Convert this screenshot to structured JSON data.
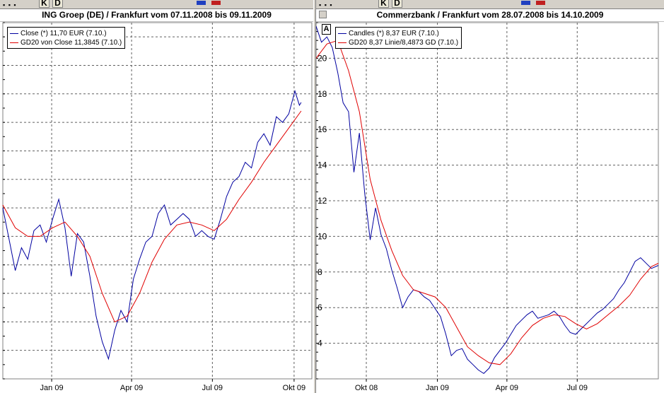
{
  "toolbar": {
    "k_label": "K",
    "d_label": "D"
  },
  "left_chart": {
    "title": "ING Groep (DE) / Frankfurt vom 07.11.2008 bis 09.11.2009",
    "legend": [
      {
        "label": "Close (*) 11,70 EUR (7.10.)",
        "color": "#0000a0"
      },
      {
        "label": "GD20 von Close 11,3845 (7.10.)",
        "color": "#e00000"
      }
    ]
  },
  "right_chart": {
    "title": "Commerzbank / Frankfurt vom 28.07.2008 bis 14.10.2009",
    "axis_marker": "A",
    "legend": [
      {
        "label": "Candles (*) 8,37 EUR (7.10.)",
        "color": "#0000a0"
      },
      {
        "label": "GD20 8,37 Linie/8,4873 GD (7.10.)",
        "color": "#e00000"
      }
    ]
  },
  "chart_data": [
    {
      "type": "line",
      "title": "ING Groep (DE) / Frankfurt vom 07.11.2008 bis 09.11.2009",
      "x_tick_labels": [
        "Jan 09",
        "Apr 09",
        "Jul 09",
        "Okt 09"
      ],
      "x_ticks": [
        "2009-01-01",
        "2009-04-01",
        "2009-07-01",
        "2009-10-01"
      ],
      "xlim": [
        "2008-11-07",
        "2009-10-21"
      ],
      "y_axis_labels_visible": false,
      "grid": true,
      "legend_position": "top-left",
      "series": [
        {
          "name": "Close (*) 11,70 EUR (7.10.)",
          "color": "#0000a0",
          "points": [
            [
              "2008-11-07",
              8.0
            ],
            [
              "2008-11-14",
              6.9
            ],
            [
              "2008-11-21",
              5.8
            ],
            [
              "2008-11-28",
              6.6
            ],
            [
              "2008-12-05",
              6.2
            ],
            [
              "2008-12-12",
              7.2
            ],
            [
              "2008-12-19",
              7.4
            ],
            [
              "2008-12-26",
              6.8
            ],
            [
              "2009-01-02",
              7.6
            ],
            [
              "2009-01-09",
              8.3
            ],
            [
              "2009-01-16",
              7.3
            ],
            [
              "2009-01-23",
              5.6
            ],
            [
              "2009-01-30",
              7.1
            ],
            [
              "2009-02-06",
              6.8
            ],
            [
              "2009-02-13",
              5.6
            ],
            [
              "2009-02-20",
              4.2
            ],
            [
              "2009-02-27",
              3.3
            ],
            [
              "2009-03-06",
              2.7
            ],
            [
              "2009-03-13",
              3.7
            ],
            [
              "2009-03-20",
              4.4
            ],
            [
              "2009-03-27",
              4.0
            ],
            [
              "2009-04-03",
              5.5
            ],
            [
              "2009-04-10",
              6.2
            ],
            [
              "2009-04-17",
              6.8
            ],
            [
              "2009-04-24",
              7.0
            ],
            [
              "2009-05-01",
              7.8
            ],
            [
              "2009-05-08",
              8.1
            ],
            [
              "2009-05-15",
              7.4
            ],
            [
              "2009-05-22",
              7.6
            ],
            [
              "2009-05-29",
              7.8
            ],
            [
              "2009-06-05",
              7.6
            ],
            [
              "2009-06-12",
              7.0
            ],
            [
              "2009-06-19",
              7.2
            ],
            [
              "2009-06-26",
              7.0
            ],
            [
              "2009-07-03",
              6.9
            ],
            [
              "2009-07-10",
              7.6
            ],
            [
              "2009-07-17",
              8.4
            ],
            [
              "2009-07-24",
              8.9
            ],
            [
              "2009-07-31",
              9.1
            ],
            [
              "2009-08-07",
              9.6
            ],
            [
              "2009-08-14",
              9.4
            ],
            [
              "2009-08-21",
              10.3
            ],
            [
              "2009-08-28",
              10.6
            ],
            [
              "2009-09-04",
              10.2
            ],
            [
              "2009-09-11",
              11.2
            ],
            [
              "2009-09-18",
              11.0
            ],
            [
              "2009-09-25",
              11.3
            ],
            [
              "2009-10-02",
              12.1
            ],
            [
              "2009-10-07",
              11.6
            ],
            [
              "2009-10-09",
              11.7
            ]
          ]
        },
        {
          "name": "GD20 von Close 11,3845 (7.10.)",
          "color": "#e00000",
          "points": [
            [
              "2008-11-07",
              8.1
            ],
            [
              "2008-11-21",
              7.3
            ],
            [
              "2008-12-05",
              7.0
            ],
            [
              "2008-12-19",
              7.0
            ],
            [
              "2009-01-02",
              7.3
            ],
            [
              "2009-01-16",
              7.5
            ],
            [
              "2009-01-30",
              7.0
            ],
            [
              "2009-02-13",
              6.3
            ],
            [
              "2009-02-27",
              5.0
            ],
            [
              "2009-03-13",
              4.0
            ],
            [
              "2009-03-27",
              4.2
            ],
            [
              "2009-04-10",
              5.0
            ],
            [
              "2009-04-24",
              6.1
            ],
            [
              "2009-05-08",
              6.9
            ],
            [
              "2009-05-22",
              7.4
            ],
            [
              "2009-06-05",
              7.5
            ],
            [
              "2009-06-19",
              7.4
            ],
            [
              "2009-07-03",
              7.2
            ],
            [
              "2009-07-17",
              7.6
            ],
            [
              "2009-07-31",
              8.3
            ],
            [
              "2009-08-14",
              8.9
            ],
            [
              "2009-08-28",
              9.6
            ],
            [
              "2009-09-11",
              10.2
            ],
            [
              "2009-09-25",
              10.8
            ],
            [
              "2009-10-09",
              11.4
            ]
          ]
        }
      ]
    },
    {
      "type": "line",
      "title": "Commerzbank / Frankfurt vom 28.07.2008 bis 14.10.2009",
      "x_tick_labels": [
        "Okt 08",
        "Jan 09",
        "Apr 09",
        "Jul 09"
      ],
      "x_ticks": [
        "2008-10-01",
        "2009-01-01",
        "2009-04-01",
        "2009-07-01"
      ],
      "xlim": [
        "2008-07-28",
        "2009-10-14"
      ],
      "ylim": [
        2,
        22
      ],
      "y_tick_labels": [
        "4",
        "6",
        "8",
        "10",
        "12",
        "14",
        "16",
        "18",
        "20"
      ],
      "y_ticks": [
        4,
        6,
        8,
        10,
        12,
        14,
        16,
        18,
        20
      ],
      "grid": true,
      "legend_position": "top-left",
      "series": [
        {
          "name": "Candles (*) 8,37 EUR (7.10.)",
          "color": "#0000a0",
          "points": [
            [
              "2008-07-28",
              21.8
            ],
            [
              "2008-08-04",
              20.9
            ],
            [
              "2008-08-11",
              21.2
            ],
            [
              "2008-08-18",
              20.6
            ],
            [
              "2008-08-25",
              19.2
            ],
            [
              "2008-09-01",
              17.5
            ],
            [
              "2008-09-08",
              17.0
            ],
            [
              "2008-09-15",
              13.6
            ],
            [
              "2008-09-22",
              15.8
            ],
            [
              "2008-09-29",
              12.4
            ],
            [
              "2008-10-06",
              9.8
            ],
            [
              "2008-10-13",
              11.6
            ],
            [
              "2008-10-20",
              10.1
            ],
            [
              "2008-10-27",
              9.3
            ],
            [
              "2008-11-03",
              8.1
            ],
            [
              "2008-11-10",
              7.1
            ],
            [
              "2008-11-17",
              6.0
            ],
            [
              "2008-11-24",
              6.6
            ],
            [
              "2008-12-01",
              7.0
            ],
            [
              "2008-12-08",
              6.9
            ],
            [
              "2008-12-15",
              6.6
            ],
            [
              "2008-12-22",
              6.4
            ],
            [
              "2009-01-05",
              5.5
            ],
            [
              "2009-01-12",
              4.5
            ],
            [
              "2009-01-19",
              3.3
            ],
            [
              "2009-01-26",
              3.6
            ],
            [
              "2009-02-02",
              3.7
            ],
            [
              "2009-02-09",
              3.1
            ],
            [
              "2009-02-16",
              2.8
            ],
            [
              "2009-02-23",
              2.5
            ],
            [
              "2009-03-02",
              2.3
            ],
            [
              "2009-03-09",
              2.6
            ],
            [
              "2009-03-16",
              3.2
            ],
            [
              "2009-03-23",
              3.6
            ],
            [
              "2009-03-30",
              4.0
            ],
            [
              "2009-04-06",
              4.5
            ],
            [
              "2009-04-13",
              5.0
            ],
            [
              "2009-04-20",
              5.3
            ],
            [
              "2009-04-27",
              5.6
            ],
            [
              "2009-05-04",
              5.8
            ],
            [
              "2009-05-11",
              5.4
            ],
            [
              "2009-05-18",
              5.5
            ],
            [
              "2009-05-25",
              5.6
            ],
            [
              "2009-06-01",
              5.8
            ],
            [
              "2009-06-08",
              5.5
            ],
            [
              "2009-06-15",
              5.0
            ],
            [
              "2009-06-22",
              4.6
            ],
            [
              "2009-06-29",
              4.5
            ],
            [
              "2009-07-06",
              4.8
            ],
            [
              "2009-07-13",
              5.1
            ],
            [
              "2009-07-20",
              5.4
            ],
            [
              "2009-07-27",
              5.7
            ],
            [
              "2009-08-03",
              5.9
            ],
            [
              "2009-08-10",
              6.2
            ],
            [
              "2009-08-17",
              6.5
            ],
            [
              "2009-08-24",
              7.0
            ],
            [
              "2009-08-31",
              7.4
            ],
            [
              "2009-09-07",
              8.0
            ],
            [
              "2009-09-14",
              8.6
            ],
            [
              "2009-09-21",
              8.8
            ],
            [
              "2009-09-28",
              8.5
            ],
            [
              "2009-10-05",
              8.2
            ],
            [
              "2009-10-14",
              8.37
            ]
          ]
        },
        {
          "name": "GD20 8,37 Linie/8,4873 GD (7.10.)",
          "color": "#e00000",
          "points": [
            [
              "2008-07-28",
              20.0
            ],
            [
              "2008-08-11",
              20.8
            ],
            [
              "2008-08-25",
              21.0
            ],
            [
              "2008-09-08",
              19.3
            ],
            [
              "2008-09-22",
              17.0
            ],
            [
              "2008-10-06",
              13.2
            ],
            [
              "2008-10-20",
              10.9
            ],
            [
              "2008-11-03",
              9.2
            ],
            [
              "2008-11-17",
              7.8
            ],
            [
              "2008-12-01",
              7.0
            ],
            [
              "2008-12-15",
              6.8
            ],
            [
              "2008-12-29",
              6.6
            ],
            [
              "2009-01-12",
              6.0
            ],
            [
              "2009-01-26",
              4.9
            ],
            [
              "2009-02-09",
              3.8
            ],
            [
              "2009-02-23",
              3.3
            ],
            [
              "2009-03-09",
              2.9
            ],
            [
              "2009-03-23",
              2.8
            ],
            [
              "2009-04-06",
              3.4
            ],
            [
              "2009-04-20",
              4.3
            ],
            [
              "2009-05-04",
              5.0
            ],
            [
              "2009-05-18",
              5.4
            ],
            [
              "2009-06-01",
              5.6
            ],
            [
              "2009-06-15",
              5.5
            ],
            [
              "2009-06-29",
              5.1
            ],
            [
              "2009-07-13",
              4.8
            ],
            [
              "2009-07-27",
              5.1
            ],
            [
              "2009-08-10",
              5.6
            ],
            [
              "2009-08-24",
              6.1
            ],
            [
              "2009-09-07",
              6.7
            ],
            [
              "2009-09-21",
              7.6
            ],
            [
              "2009-10-05",
              8.3
            ],
            [
              "2009-10-14",
              8.49
            ]
          ]
        }
      ]
    }
  ]
}
